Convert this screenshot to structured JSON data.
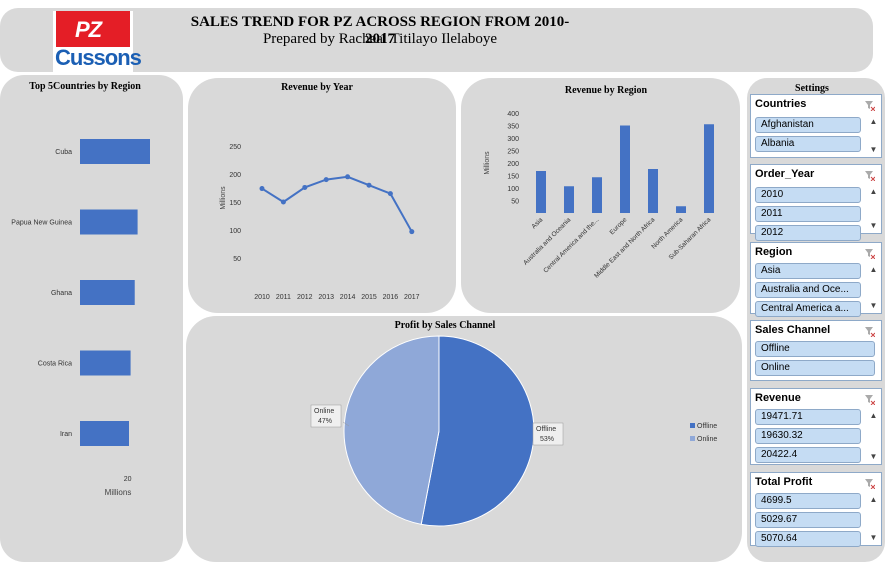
{
  "header": {
    "title": "SALES TREND FOR PZ ACROSS REGION FROM 2010-2017",
    "subtitle": "Prepared by Racheal Titilayo Ilelaboye",
    "logo_top": "PZ",
    "logo_bottom": "Cussons"
  },
  "colors": {
    "primary": "#4472c4",
    "secondary": "#8fa8d8",
    "panel": "#d9d9d9",
    "slicer_item": "#c5dcf3"
  },
  "chart_data": [
    {
      "type": "bar",
      "orientation": "horizontal",
      "title": "Top 5Countries by Region",
      "categories": [
        "Cuba",
        "Papua New Guinea",
        "Ghana",
        "Costa Rica",
        "Iran"
      ],
      "values": [
        22,
        18.1,
        17.2,
        15.9,
        15.4
      ],
      "xtick_labels": [
        "20"
      ],
      "xlabel": "Millions"
    },
    {
      "type": "line",
      "title": "Revenue by Year",
      "x": [
        "2010",
        "2011",
        "2012",
        "2013",
        "2014",
        "2015",
        "2016",
        "2017"
      ],
      "values": [
        174,
        150,
        176,
        190,
        195,
        180,
        165,
        97
      ],
      "ylim": [
        0,
        250
      ],
      "yticks": [
        "50",
        "100",
        "150",
        "200",
        "250"
      ],
      "ylabel": "Millions"
    },
    {
      "type": "bar",
      "title": "Revenue by Region",
      "categories": [
        "Asia",
        "Australia and Oceania",
        "Central America and the...",
        "Europe",
        "Middle East and North Africa",
        "North America",
        "Sub-Saharan Africa"
      ],
      "values": [
        168,
        107,
        143,
        350,
        176,
        27,
        355
      ],
      "ylim": [
        0,
        400
      ],
      "yticks": [
        "50",
        "100",
        "150",
        "200",
        "250",
        "300",
        "350",
        "400"
      ],
      "ylabel": "Millions"
    },
    {
      "type": "pie",
      "title": "Profit by Sales Channel",
      "slices": [
        {
          "label": "Offline",
          "value": 53,
          "pct_label": "53%"
        },
        {
          "label": "Online",
          "value": 47,
          "pct_label": "47%"
        }
      ],
      "legend": [
        "Offline",
        "Online"
      ],
      "legend_position": "right"
    }
  ],
  "settings": {
    "title": "Settings",
    "slicers": [
      {
        "name": "countries",
        "label": "Countries",
        "items": [
          "Afghanistan",
          "Albania"
        ]
      },
      {
        "name": "order-year",
        "label": "Order_Year",
        "items": [
          "2010",
          "2011",
          "2012"
        ]
      },
      {
        "name": "region",
        "label": "Region",
        "items": [
          "Asia",
          "Australia and Oce...",
          "Central America a..."
        ]
      },
      {
        "name": "sales-channel",
        "label": "Sales Channel",
        "items": [
          "Offline",
          "Online"
        ]
      },
      {
        "name": "revenue",
        "label": "Revenue",
        "items": [
          "19471.71",
          "19630.32",
          "20422.4"
        ]
      },
      {
        "name": "total-profit",
        "label": "Total Profit",
        "items": [
          "4699.5",
          "5029.67",
          "5070.64"
        ]
      }
    ]
  }
}
